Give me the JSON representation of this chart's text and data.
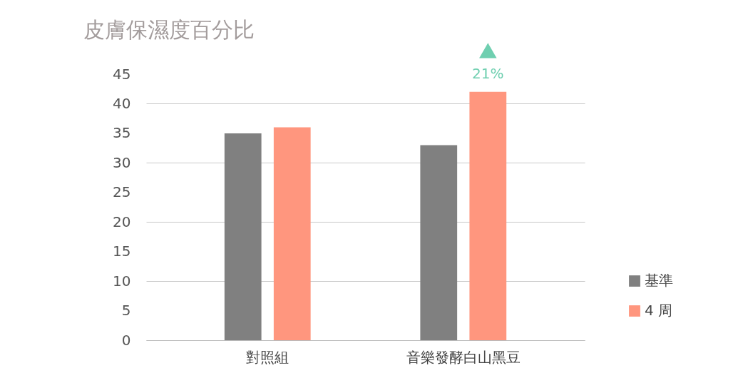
{
  "chart_data": {
    "type": "bar",
    "title": "皮膚保濕度百分比",
    "categories": [
      "對照組",
      "音樂發酵白山黑豆"
    ],
    "series": [
      {
        "name": "基準",
        "color": "#808080",
        "values": [
          35,
          33
        ]
      },
      {
        "name": "4 周",
        "color": "#ff967e",
        "values": [
          36,
          42
        ]
      }
    ],
    "ylim": [
      0,
      45
    ],
    "yticks": [
      0,
      5,
      10,
      15,
      20,
      25,
      30,
      35,
      40,
      45
    ],
    "grid": "y",
    "legend": "right",
    "annotations": [
      "21%"
    ]
  }
}
